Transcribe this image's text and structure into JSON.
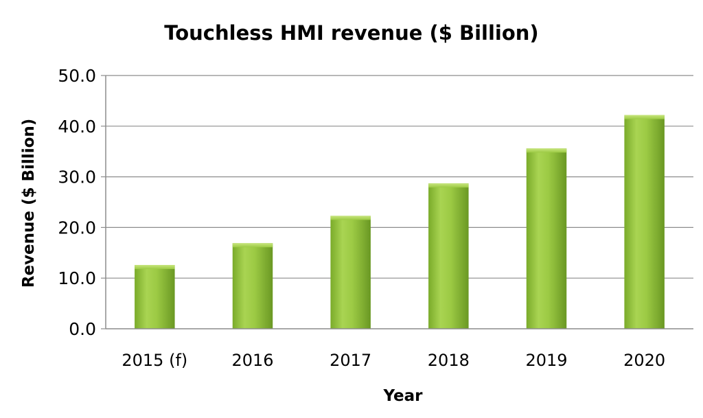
{
  "chart_data": {
    "type": "bar",
    "title": "Touchless HMI revenue ($ Billion)",
    "xlabel": "Year",
    "ylabel": "Revenue ($ Billion)",
    "categories": [
      "2015 (f)",
      "2016",
      "2017",
      "2018",
      "2019",
      "2020"
    ],
    "values": [
      12.6,
      16.9,
      22.3,
      28.7,
      35.6,
      42.2
    ],
    "ylim": [
      0,
      50
    ],
    "yticks": [
      "0.0",
      "10.0",
      "20.0",
      "30.0",
      "40.0",
      "50.0"
    ],
    "grid": true,
    "legend": "none",
    "bar_color": "#8fbf3a"
  }
}
